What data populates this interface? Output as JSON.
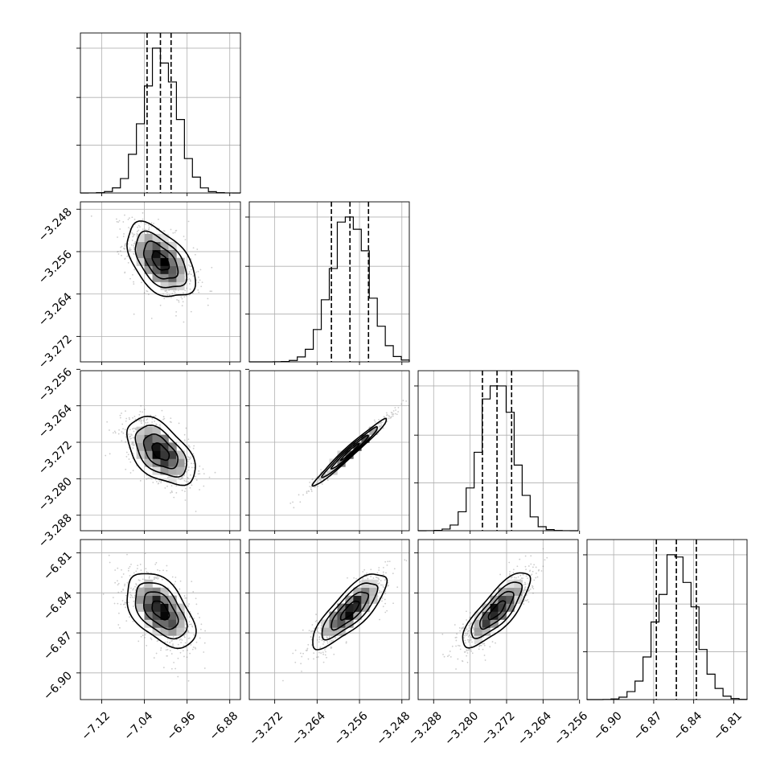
{
  "chart_data": {
    "type": "corner",
    "n_params": 4,
    "grid": true,
    "parameters": [
      {
        "range": [
          -7.16,
          -6.86
        ],
        "ticks": [
          -7.12,
          -7.04,
          -6.96,
          -6.88
        ],
        "tick_labels": [
          "−7.12",
          "−7.04",
          "−6.96",
          "−6.88"
        ],
        "mean": -7.01,
        "sd": 0.032,
        "quantiles": [
          -7.035,
          -7.01,
          -6.99
        ]
      },
      {
        "range": [
          -3.2768,
          -3.2466
        ],
        "ticks": [
          -3.272,
          -3.264,
          -3.256,
          -3.248
        ],
        "tick_labels": [
          "−3.272",
          "−3.264",
          "−3.256",
          "−3.248"
        ],
        "mean": -3.2578,
        "sd": 0.0035,
        "quantiles": [
          -3.2613,
          -3.2578,
          -3.2543
        ]
      },
      {
        "range": [
          -3.2914,
          -3.2563
        ],
        "ticks": [
          -3.288,
          -3.28,
          -3.272,
          -3.264,
          -3.256
        ],
        "tick_labels": [
          "−3.288",
          "−3.280",
          "−3.272",
          "−3.264",
          "−3.256"
        ],
        "mean": -3.2741,
        "sd": 0.0037,
        "quantiles": [
          -3.2773,
          -3.2741,
          -3.2709
        ]
      },
      {
        "range": [
          -6.92,
          -6.8
        ],
        "ticks": [
          -6.9,
          -6.87,
          -6.84,
          -6.81
        ],
        "tick_labels": [
          "−6.90",
          "−6.87",
          "−6.84",
          "−6.81"
        ],
        "mean": -6.853,
        "sd": 0.014,
        "quantiles": [
          -6.868,
          -6.853,
          -6.838
        ]
      }
    ],
    "correlations": [
      {
        "i": 1,
        "j": 0,
        "rho": -0.5
      },
      {
        "i": 2,
        "j": 0,
        "rho": -0.5
      },
      {
        "i": 2,
        "j": 1,
        "rho": 0.98
      },
      {
        "i": 3,
        "j": 0,
        "rho": -0.5
      },
      {
        "i": 3,
        "j": 1,
        "rho": 0.8
      },
      {
        "i": 3,
        "j": 2,
        "rho": 0.8
      }
    ],
    "histogram_bins": 20,
    "contour_levels_sigma": [
      0.5,
      1.0,
      1.5,
      2.0
    ]
  }
}
